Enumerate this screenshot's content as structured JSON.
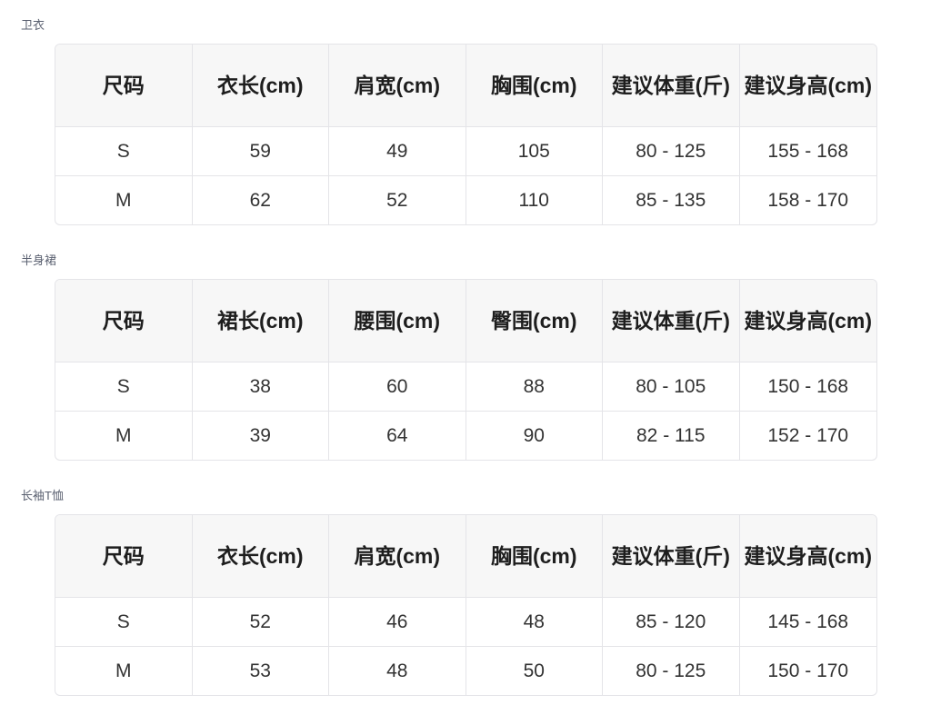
{
  "sections": [
    {
      "title": "卫衣",
      "headers": [
        "尺码",
        "衣长(cm)",
        "肩宽(cm)",
        "胸围(cm)",
        "建议体重(斤)",
        "建议身高(cm)"
      ],
      "rows": [
        [
          "S",
          "59",
          "49",
          "105",
          "80 - 125",
          "155 - 168"
        ],
        [
          "M",
          "62",
          "52",
          "110",
          "85 - 135",
          "158 - 170"
        ]
      ]
    },
    {
      "title": "半身裙",
      "headers": [
        "尺码",
        "裙长(cm)",
        "腰围(cm)",
        "臀围(cm)",
        "建议体重(斤)",
        "建议身高(cm)"
      ],
      "rows": [
        [
          "S",
          "38",
          "60",
          "88",
          "80 - 105",
          "150 - 168"
        ],
        [
          "M",
          "39",
          "64",
          "90",
          "82 - 115",
          "152 - 170"
        ]
      ]
    },
    {
      "title": "长袖T恤",
      "headers": [
        "尺码",
        "衣长(cm)",
        "肩宽(cm)",
        "胸围(cm)",
        "建议体重(斤)",
        "建议身高(cm)"
      ],
      "rows": [
        [
          "S",
          "52",
          "46",
          "48",
          "85 - 120",
          "145 - 168"
        ],
        [
          "M",
          "53",
          "48",
          "50",
          "80 - 125",
          "150 - 170"
        ]
      ]
    }
  ]
}
